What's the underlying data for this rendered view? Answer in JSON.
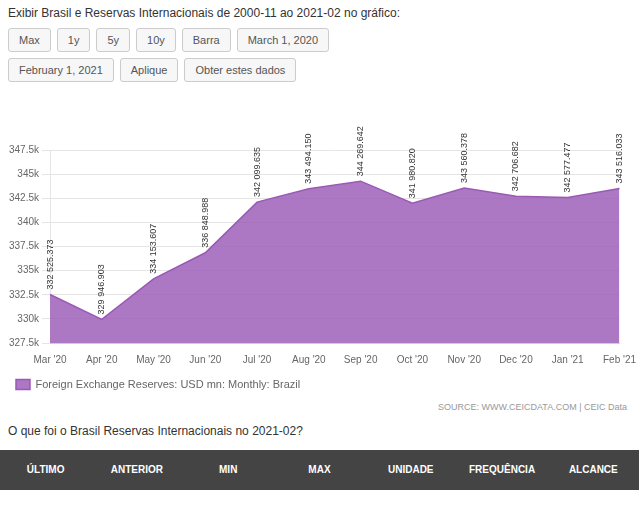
{
  "chart_data": {
    "type": "area",
    "title": "Exibir Brasil e Reservas Internacionais de 2000-11 ao 2021-02 no gráfico:",
    "categories": [
      "Mar '20",
      "Apr '20",
      "May '20",
      "Jun '20",
      "Jul '20",
      "Aug '20",
      "Sep '20",
      "Oct '20",
      "Nov '20",
      "Dec '20",
      "Jan '21",
      "Feb '21"
    ],
    "series": [
      {
        "name": "Foreign Exchange Reserves: USD mn: Monthly: Brazil",
        "color": "#9b59b6",
        "values": [
          332525.373,
          329946.903,
          334153.607,
          336848.988,
          342099.635,
          343494.15,
          344269.642,
          341980.82,
          343560.378,
          342706.682,
          342577.477,
          343516.033
        ],
        "value_labels": [
          "332 525.373",
          "329 946.903",
          "334 153.607",
          "336 848.988",
          "342 099.635",
          "343 494.150",
          "344 269.642",
          "341 980.820",
          "343 560.378",
          "342 706.682",
          "342 577.477",
          "343 516.033"
        ]
      }
    ],
    "ylim": [
      327500,
      347500
    ],
    "yticks": [
      {
        "value": 327500,
        "label": "327.5k"
      },
      {
        "value": 330000,
        "label": "330k"
      },
      {
        "value": 332500,
        "label": "332.5k"
      },
      {
        "value": 335000,
        "label": "335k"
      },
      {
        "value": 337500,
        "label": "337.5k"
      },
      {
        "value": 340000,
        "label": "340k"
      },
      {
        "value": 342500,
        "label": "342.5k"
      },
      {
        "value": 345000,
        "label": "345k"
      },
      {
        "value": 347500,
        "label": "347.5k"
      }
    ],
    "grid": true,
    "legend": "bottom",
    "data_labels": true,
    "annotations": [
      "Max",
      "1y",
      "5y",
      "10y",
      "Barra",
      "March 1, 2020",
      "February 1, 2021",
      "Aplique",
      "Obter estes dados",
      "SOURCE: WWW.CEICDATA.COM | CEIC Data",
      "O que foi o Brasil Reservas Internacionais no 2021-02?",
      "ÚLTIMO",
      "ANTERIOR",
      "MIN",
      "MAX",
      "UNIDADE",
      "FREQUÊNCIA",
      "ALCANCE"
    ]
  }
}
